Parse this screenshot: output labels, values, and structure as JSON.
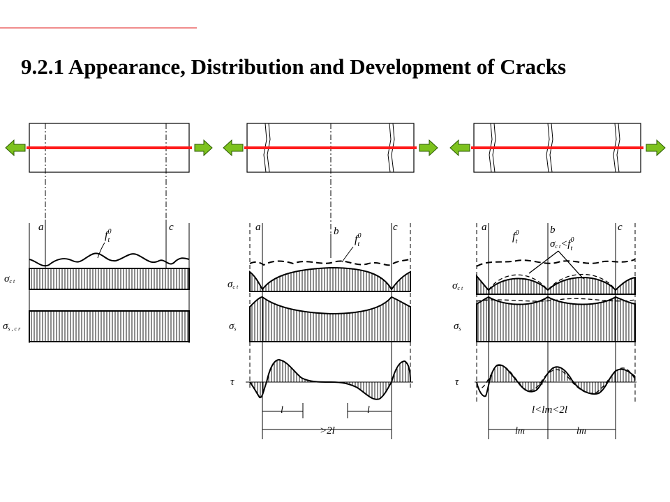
{
  "slide": {
    "title": "9.2.1  Appearance, Distribution and Development of Cracks"
  },
  "colors": {
    "accent_line": "#f08c8c",
    "steel_bar": "#ff1a1a",
    "arrow_fill": "#7dc21e",
    "ink": "#000000"
  },
  "figure": {
    "panels": [
      {
        "section_labels": [
          "a",
          "c"
        ],
        "tension_label": "f",
        "tension_sup": "0",
        "tension_sub": "t",
        "row_labels": [
          "σ",
          "σ"
        ],
        "row_subs": [
          "c t",
          "s , c r"
        ]
      },
      {
        "section_labels": [
          "a",
          "b",
          "c"
        ],
        "tension_label": "f",
        "tension_sup": "0",
        "tension_sub": "t",
        "row_labels": [
          "σ",
          "σ",
          "τ"
        ],
        "row_subs": [
          "c t",
          "s",
          ""
        ],
        "dim_l": "l",
        "dim_total": ">2l"
      },
      {
        "section_labels": [
          "a",
          "b",
          "c"
        ],
        "tension_label": "f",
        "tension_sup": "0",
        "tension_sub": "t",
        "inequality_lhs": "σ",
        "inequality_lhs_sub": "c t",
        "inequality_rhs": "<f",
        "inequality_rhs_sup": "0",
        "inequality_rhs_sub": "t",
        "row_labels": [
          "σ",
          "σ",
          "τ"
        ],
        "row_subs": [
          "c t",
          "s",
          ""
        ],
        "spacing_relation": "l<lm<2l",
        "dim_lm": "lm"
      }
    ]
  }
}
